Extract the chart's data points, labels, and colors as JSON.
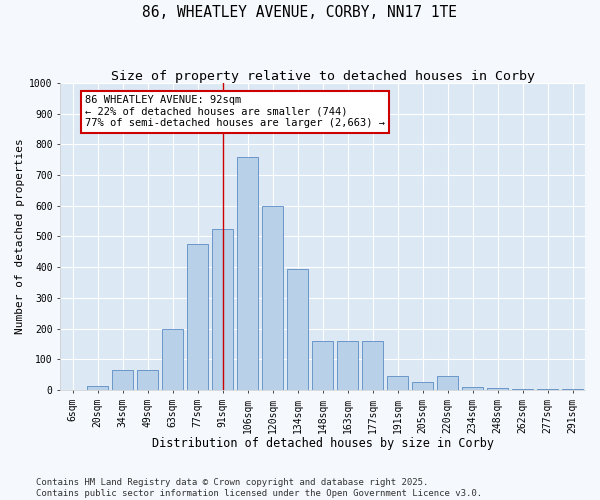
{
  "title": "86, WHEATLEY AVENUE, CORBY, NN17 1TE",
  "subtitle": "Size of property relative to detached houses in Corby",
  "xlabel": "Distribution of detached houses by size in Corby",
  "ylabel": "Number of detached properties",
  "categories": [
    "6sqm",
    "20sqm",
    "34sqm",
    "49sqm",
    "63sqm",
    "77sqm",
    "91sqm",
    "106sqm",
    "120sqm",
    "134sqm",
    "148sqm",
    "163sqm",
    "177sqm",
    "191sqm",
    "205sqm",
    "220sqm",
    "234sqm",
    "248sqm",
    "262sqm",
    "277sqm",
    "291sqm"
  ],
  "values": [
    0,
    12,
    65,
    65,
    200,
    475,
    525,
    760,
    600,
    395,
    160,
    160,
    160,
    45,
    25,
    45,
    8,
    5,
    3,
    3,
    3
  ],
  "bar_color": "#b8d0e8",
  "bar_edge_color": "#5b8cc4",
  "background_color": "#dce9f5",
  "fig_background_color": "#f5f8fc",
  "grid_color": "#ffffff",
  "vline_x": 6,
  "vline_color": "#cc0000",
  "annotation_text": "86 WHEATLEY AVENUE: 92sqm\n← 22% of detached houses are smaller (744)\n77% of semi-detached houses are larger (2,663) →",
  "annotation_box_color": "#cc0000",
  "ylim": [
    0,
    1000
  ],
  "yticks": [
    0,
    100,
    200,
    300,
    400,
    500,
    600,
    700,
    800,
    900,
    1000
  ],
  "footer": "Contains HM Land Registry data © Crown copyright and database right 2025.\nContains public sector information licensed under the Open Government Licence v3.0.",
  "title_fontsize": 10.5,
  "subtitle_fontsize": 9.5,
  "xlabel_fontsize": 8.5,
  "ylabel_fontsize": 8,
  "tick_fontsize": 7,
  "annotation_fontsize": 7.5,
  "footer_fontsize": 6.5
}
